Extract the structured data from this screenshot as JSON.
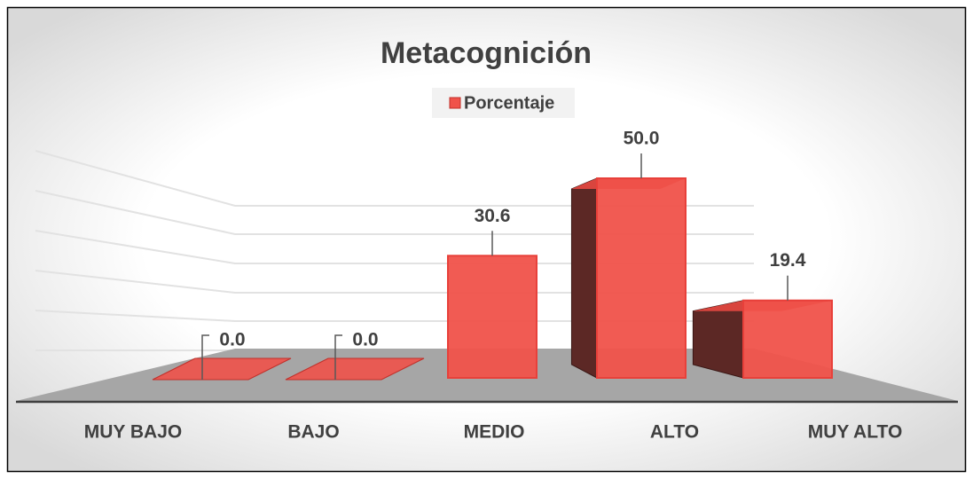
{
  "chart_data": {
    "type": "bar3d",
    "title": "Metacognición",
    "categories": [
      "MUY BAJO",
      "BAJO",
      "MEDIO",
      "ALTO",
      "MUY ALTO"
    ],
    "series": [
      {
        "name": "Porcentaje",
        "color": "#f0524a",
        "values": [
          0,
          0,
          30.6,
          50,
          19.4
        ],
        "value_labels": [
          "0.0",
          "0.0",
          "30.6",
          "50.0",
          "19.4"
        ]
      }
    ],
    "ylim": [
      0,
      60
    ]
  }
}
